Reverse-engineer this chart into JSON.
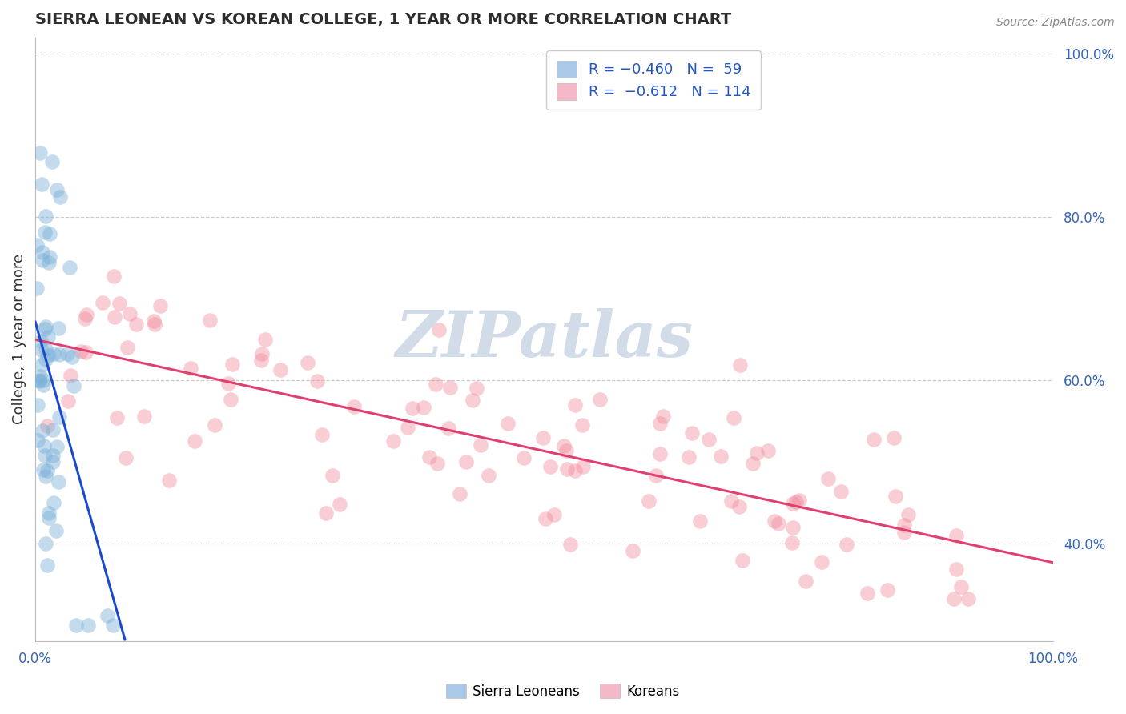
{
  "title": "SIERRA LEONEAN VS KOREAN COLLEGE, 1 YEAR OR MORE CORRELATION CHART",
  "source_text": "Source: ZipAtlas.com",
  "ylabel": "College, 1 year or more",
  "xlim": [
    0.0,
    1.0
  ],
  "ylim": [
    0.28,
    1.02
  ],
  "ytick_positions_right": [
    0.4,
    0.6,
    0.8,
    1.0
  ],
  "ytick_labels_right": [
    "40.0%",
    "60.0%",
    "80.0%",
    "100.0%"
  ],
  "sierra_leonean_color": "#7ab0d8",
  "korean_color": "#f090a0",
  "sierra_trend_color": "#1a4acc",
  "korean_trend_color": "#e04070",
  "background_color": "#ffffff",
  "grid_color": "#cccccc",
  "watermark_color": "#cdd8e6",
  "legend_color_sl": "#aac8e8",
  "legend_color_k": "#f4b8c8",
  "bottom_legend": [
    "Sierra Leoneans",
    "Koreans"
  ],
  "title_color": "#2d2d2d",
  "source_color": "#888888",
  "tick_color": "#3366bb",
  "ylabel_color": "#333333"
}
